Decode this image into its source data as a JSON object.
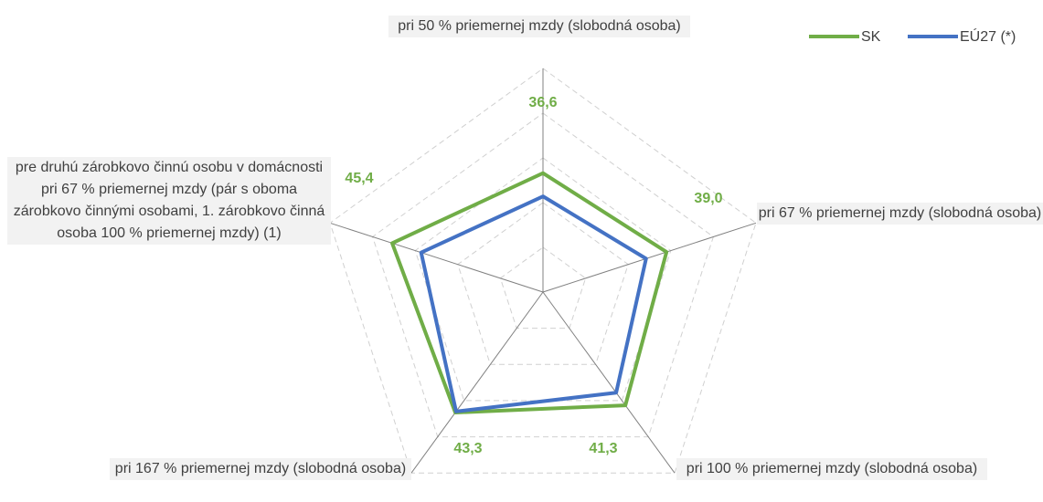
{
  "chart_data": {
    "type": "radar",
    "categories": [
      "pri 50 % priemernej mzdy (slobodná osoba)",
      "pri 67 % priemernej mzdy (slobodná osoba)",
      "pri 100 % priemernej mzdy (slobodná osoba)",
      "pri 167 % priemernej mzdy (slobodná osoba)",
      "pre druhú zárobkovo činnú osobu v domácnosti pri 67 % priemernej mzdy (pár s oboma zárobkovo činnými osobami, 1. zárobkovo činná osoba 100 % priemernej mzdy) (1)"
    ],
    "series": [
      {
        "name": "SK",
        "color": "#70ad47",
        "values": [
          36.6,
          39.0,
          41.3,
          43.3,
          45.4
        ],
        "value_labels": [
          "36,6",
          "39,0",
          "41,3",
          "43,3",
          "45,4"
        ]
      },
      {
        "name": "EÚ27 (*)",
        "color": "#4472c4",
        "values": [
          31.4,
          34.2,
          37.8,
          43.0,
          38.6
        ]
      }
    ],
    "ylim": [
      10,
      60
    ],
    "yticks": [
      20,
      30,
      40,
      50,
      60
    ],
    "grid": true,
    "legend": "top-right"
  }
}
